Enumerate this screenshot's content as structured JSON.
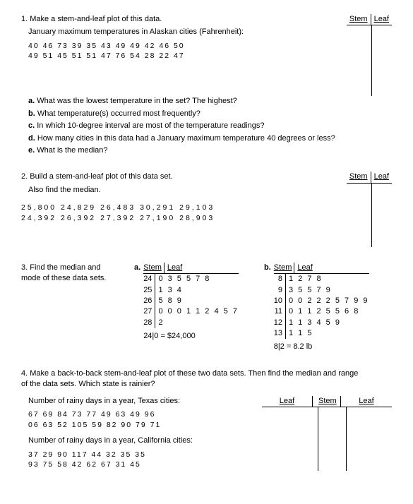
{
  "q1": {
    "prompt": "1. Make a stem-and-leaf plot of this data.",
    "data_title": "January maximum temperatures in Alaskan cities (Fahrenheit):",
    "data_line1": "40 46 73 39 35 43 49 49 42 46 50",
    "data_line2": "49 51 45 51 51 47 76 54 28 22 47",
    "a": "a.",
    "a_text": " What was the lowest temperature in the set?     The highest?",
    "b": "b.",
    "b_text": " What temperature(s) occurred most frequently?",
    "c": "c.",
    "c_text": " In which 10-degree interval are most of the temperature readings?",
    "d": "d.",
    "d_text": " How many cities in this data had a January maximum temperature 40 degrees or less?",
    "e": "e.",
    "e_text": " What is the median?",
    "stem_label": "Stem",
    "leaf_label": "Leaf"
  },
  "q2": {
    "prompt": "2. Build a stem-and-leaf plot of this data set.",
    "prompt2": "Also find the median.",
    "data_line1": "25,800  24,829  26,483  30,291  29,103",
    "data_line2": "24,392  26,392  27,392  27,190  28,903",
    "stem_label": "Stem",
    "leaf_label": "Leaf"
  },
  "q3": {
    "prompt": "3. Find the median and mode of these data sets.",
    "a_label": "a.",
    "b_label": "b.",
    "stem_label": "Stem",
    "leaf_label": "Leaf",
    "table_a": {
      "stems": [
        "24",
        "25",
        "26",
        "27",
        "28"
      ],
      "leaves": [
        "0 3 5 5 7 8",
        "1 3 4",
        "5 8 9",
        "0 0 0 1 1 2 4 5 7",
        "2"
      ],
      "key": "24|0 = $24,000"
    },
    "table_b": {
      "stems": [
        "8",
        "9",
        "10",
        "11",
        "12",
        "13"
      ],
      "leaves": [
        "1 2 7 8",
        "3 5 5 7 9",
        "0 0 2 2 2 5 7 9 9",
        "0 1 1 2 5 5 6 8",
        "1 1 3 4 5 9",
        "1 1 5"
      ],
      "key": "8|2 = 8.2 lb"
    }
  },
  "q4": {
    "prompt": "4. Make a back-to-back stem-and-leaf plot of these two data sets. Then find the median and range of the data sets. Which state is rainier?",
    "tx_title": "Number of rainy days in a year, Texas cities:",
    "tx_line1": "67 69 84 73 77 49 63 49 96",
    "tx_line2": "06 63 52 105 59 82 90 79 71",
    "ca_title": "Number of rainy days in a year, California cities:",
    "ca_line1": "37 29 90 117 44 32 35 35",
    "ca_line2": "93 75 58 42 62 67 31 45",
    "leaf_label": "Leaf",
    "stem_label": "Stem"
  }
}
